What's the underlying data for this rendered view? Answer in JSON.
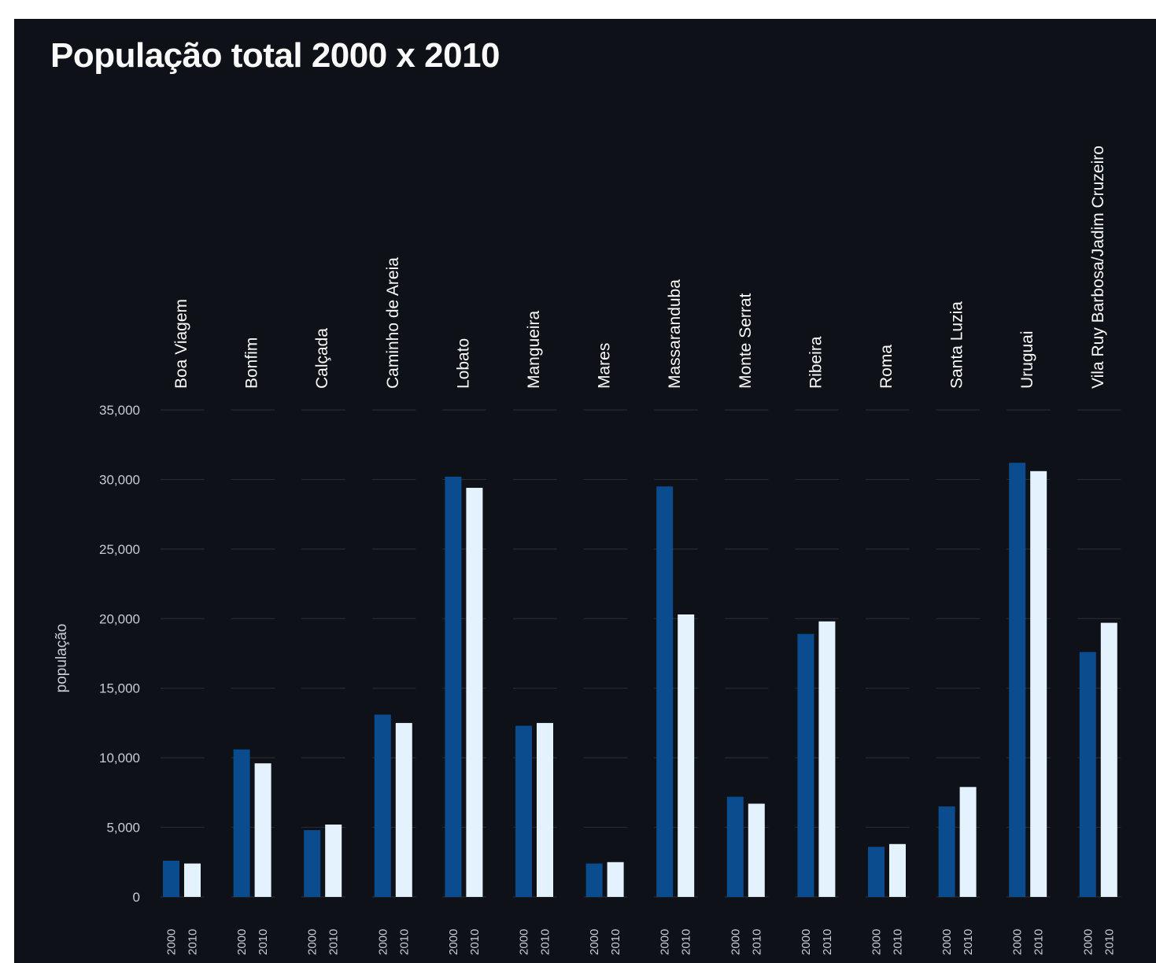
{
  "chart_data": {
    "type": "bar",
    "title": "População total 2000 x 2010",
    "ylabel": "população",
    "ylim": [
      0,
      35000
    ],
    "yticks": [
      0,
      5000,
      10000,
      15000,
      20000,
      25000,
      30000,
      35000
    ],
    "ytick_labels": [
      "0",
      "5,000",
      "10,000",
      "15,000",
      "20,000",
      "25,000",
      "30,000",
      "35,000"
    ],
    "grid": true,
    "categories": [
      "Boa Viagem",
      "Bonfim",
      "Calçada",
      "Caminho de Areia",
      "Lobato",
      "Mangueira",
      "Mares",
      "Massaranduba",
      "Monte Serrat",
      "Ribeira",
      "Roma",
      "Santa Luzia",
      "Uruguai",
      "Vila Ruy Barbosa/Jadim Cruzeiro"
    ],
    "series": [
      {
        "name": "2000",
        "color": "#0b4c8f",
        "values": [
          2600,
          10600,
          4800,
          13100,
          30200,
          12300,
          2400,
          29500,
          7200,
          18900,
          3600,
          6500,
          31200,
          17600
        ]
      },
      {
        "name": "2010",
        "color": "#e3f2fd",
        "values": [
          2400,
          9600,
          5200,
          12500,
          29400,
          12500,
          2500,
          20300,
          6700,
          19800,
          3800,
          7900,
          30600,
          19700
        ]
      }
    ]
  }
}
